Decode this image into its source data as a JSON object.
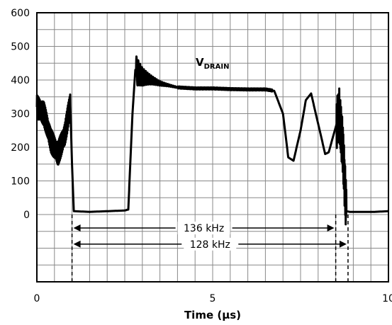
{
  "chart_data": {
    "type": "line",
    "xlabel": "Time (µs)",
    "xlim": [
      0,
      10
    ],
    "ylim": [
      -200,
      600
    ],
    "x_ticks": [
      0,
      5,
      10
    ],
    "x_tick_labels": [
      "0",
      "5",
      "10"
    ],
    "y_ticks": [
      0,
      100,
      200,
      300,
      400,
      500,
      600
    ],
    "y_tick_labels": [
      "0",
      "100",
      "200",
      "300",
      "400",
      "500",
      "600"
    ],
    "grid": true,
    "series": [
      {
        "name": "VDRAIN",
        "label_main": "V",
        "label_sub": "DRAIN",
        "x": [
          0.0,
          0.2,
          0.4,
          0.6,
          0.8,
          0.95,
          1.0,
          1.05,
          1.5,
          2.0,
          2.5,
          2.6,
          2.72,
          2.8,
          3.0,
          3.5,
          4.0,
          4.5,
          5.0,
          5.5,
          6.0,
          6.5,
          6.75,
          7.0,
          7.15,
          7.3,
          7.5,
          7.65,
          7.8,
          8.0,
          8.2,
          8.3,
          8.5,
          8.6,
          8.7,
          8.8,
          8.9,
          9.2,
          9.6,
          10.0
        ],
        "y": [
          320,
          300,
          220,
          180,
          240,
          330,
          150,
          10,
          8,
          10,
          12,
          15,
          300,
          430,
          410,
          390,
          378,
          375,
          375,
          373,
          372,
          372,
          368,
          300,
          170,
          160,
          250,
          340,
          360,
          270,
          180,
          185,
          260,
          300,
          200,
          10,
          8,
          8,
          8,
          10
        ]
      }
    ],
    "annotations": [
      {
        "text": "136 kHz",
        "x_start": 1.0,
        "x_end": 8.5
      },
      {
        "text": "128 kHz",
        "x_start": 1.0,
        "x_end": 8.85
      }
    ]
  }
}
